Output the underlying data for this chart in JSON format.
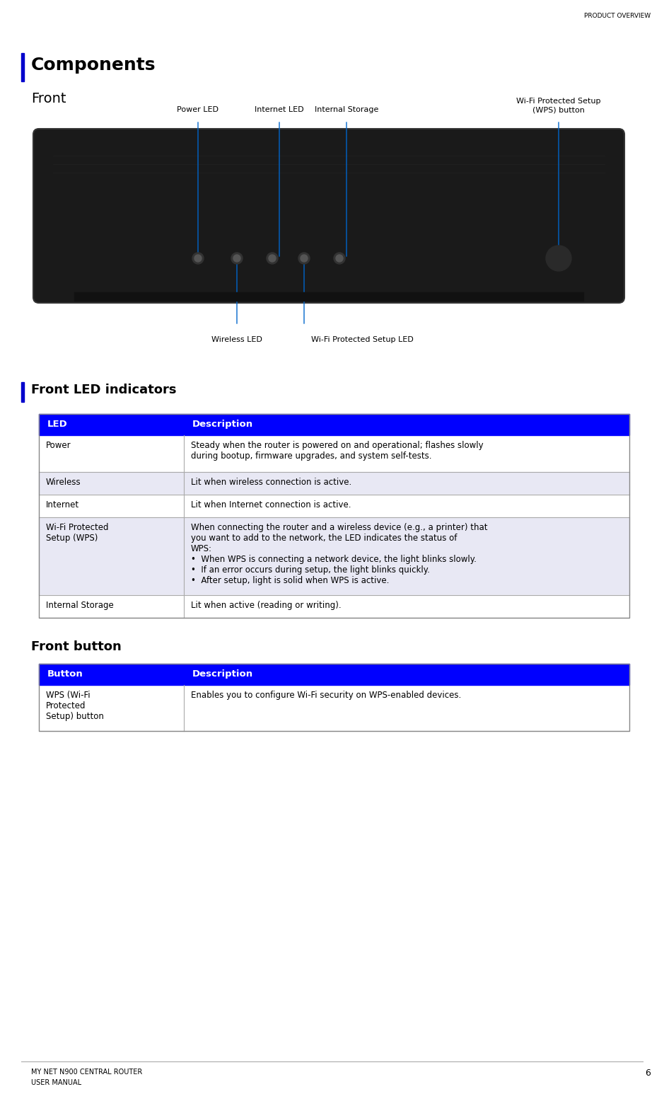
{
  "page_title": "PRODUCT OVERVIEW",
  "page_number": "6",
  "footer_line1": "MY NET N900 CENTRAL ROUTER",
  "footer_line2": "USER MANUAL",
  "section_title": "Components",
  "subsection_front": "Front",
  "subsection_led": "Front LED indicators",
  "subsection_button": "Front button",
  "header_blue": "#0000FF",
  "header_text_color": "#FFFFFF",
  "row_alt_color": "#E8E8F4",
  "row_white": "#FFFFFF",
  "border_color": "#AAAAAA",
  "led_table_headers": [
    "LED",
    "Description"
  ],
  "led_table_rows": [
    {
      "led": "Power",
      "desc": "Steady when the router is powered on and operational; flashes slowly\nduring bootup, firmware upgrades, and system self-tests.",
      "bg": "#FFFFFF"
    },
    {
      "led": "Wireless",
      "desc": "Lit when wireless connection is active.",
      "bg": "#E8E8F4"
    },
    {
      "led": "Internet",
      "desc": "Lit when Internet connection is active.",
      "bg": "#FFFFFF"
    },
    {
      "led": "Wi-Fi Protected\nSetup (WPS)",
      "desc": "When connecting the router and a wireless device (e.g., a printer) that\nyou want to add to the network, the LED indicates the status of\nWPS:\n•  When WPS is connecting a network device, the light blinks slowly.\n•  If an error occurs during setup, the light blinks quickly.\n•  After setup, light is solid when WPS is active.",
      "bg": "#E8E8F4"
    },
    {
      "led": "Internal Storage",
      "desc": "Lit when active (reading or writing).",
      "bg": "#FFFFFF"
    }
  ],
  "button_table_headers": [
    "Button",
    "Description"
  ],
  "button_table_rows": [
    {
      "button": "WPS (Wi-Fi\nProtected\nSetup) button",
      "desc": "Enables you to configure Wi-Fi security on WPS-enabled devices.",
      "bg": "#FFFFFF"
    }
  ],
  "diagram_labels": {
    "power_led": "Power LED",
    "internet_led": "Internet LED",
    "internal_storage": "Internal Storage",
    "wifi_protected_setup_button": "Wi-Fi Protected Setup\n(WPS) button",
    "wireless_led": "Wireless LED",
    "wifi_protected_setup_led": "Wi-Fi Protected Setup LED"
  },
  "left_bar_color": "#0000CC",
  "title_font_size": 16,
  "body_font_size": 8.5,
  "small_font_size": 7.5
}
